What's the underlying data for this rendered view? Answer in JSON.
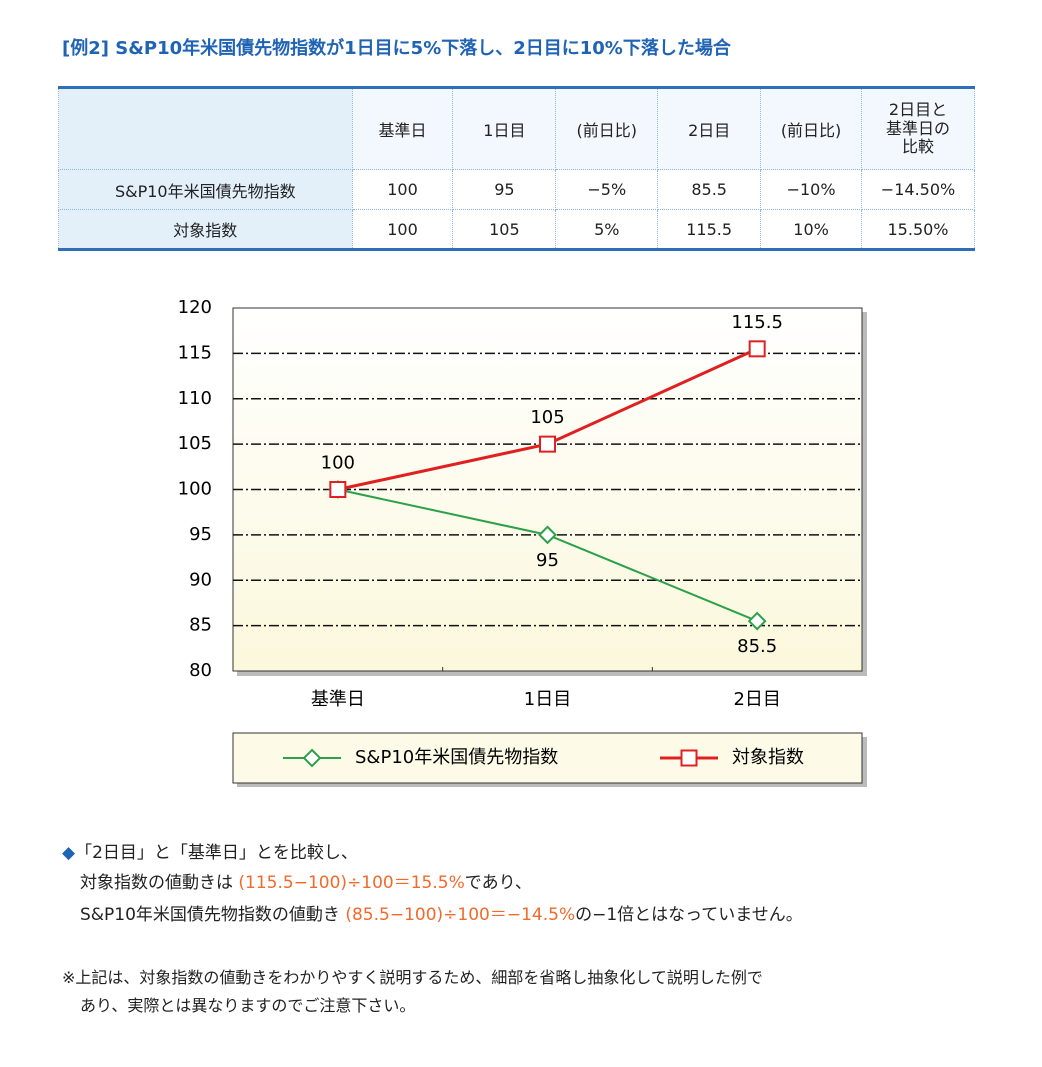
{
  "title": "[例2] S&P10年米国債先物指数が1日目に5%下落し、2日目に10%下落した場合",
  "table": {
    "header": [
      "基準日",
      "1日目",
      "(前日比)",
      "2日目",
      "(前日比)",
      "2日目と基準日の比較"
    ],
    "rows": [
      [
        "S&P10年米国債先物指数",
        "100",
        "95",
        "−5%",
        "85.5",
        "−10%",
        "−14.50%"
      ],
      [
        "対象指数",
        "100",
        "105",
        "5%",
        "115.5",
        "10%",
        "15.50%"
      ]
    ]
  },
  "chart_data": {
    "type": "line",
    "categories": [
      "基準日",
      "1日目",
      "2日目"
    ],
    "series": [
      {
        "name": "S&P10年米国債先物指数",
        "color": "#2ca04a",
        "marker": "diamond",
        "label_position": "below",
        "label_points": [
          false,
          true,
          true
        ],
        "values": [
          100,
          95,
          85.5
        ]
      },
      {
        "name": "対象指数",
        "color": "#e02020",
        "marker": "square",
        "label_position": "above",
        "label_points": [
          true,
          true,
          true
        ],
        "values": [
          100,
          105,
          115.5
        ]
      }
    ],
    "ylim": [
      80,
      120
    ],
    "yticks": [
      80,
      85,
      90,
      95,
      100,
      105,
      110,
      115,
      120
    ],
    "grid": true,
    "legend": "bottom"
  },
  "explanation": {
    "line1": "「2日目」と「基準日」とを比較し、",
    "line2": [
      "対象指数の値動きは ",
      "(115.5−100)÷100＝15.5%",
      "であり、"
    ],
    "line3": [
      "S&P10年米国債先物指数の値動き ",
      "(85.5−100)÷100＝−14.5%",
      "の−1倍とはなっていません。"
    ]
  },
  "note": [
    "※上記は、対象指数の値動きをわかりやすく説明するため、細部を省略し抽象化して説明した例で",
    "あり、実際とは異なりますのでご注意下さい。"
  ]
}
